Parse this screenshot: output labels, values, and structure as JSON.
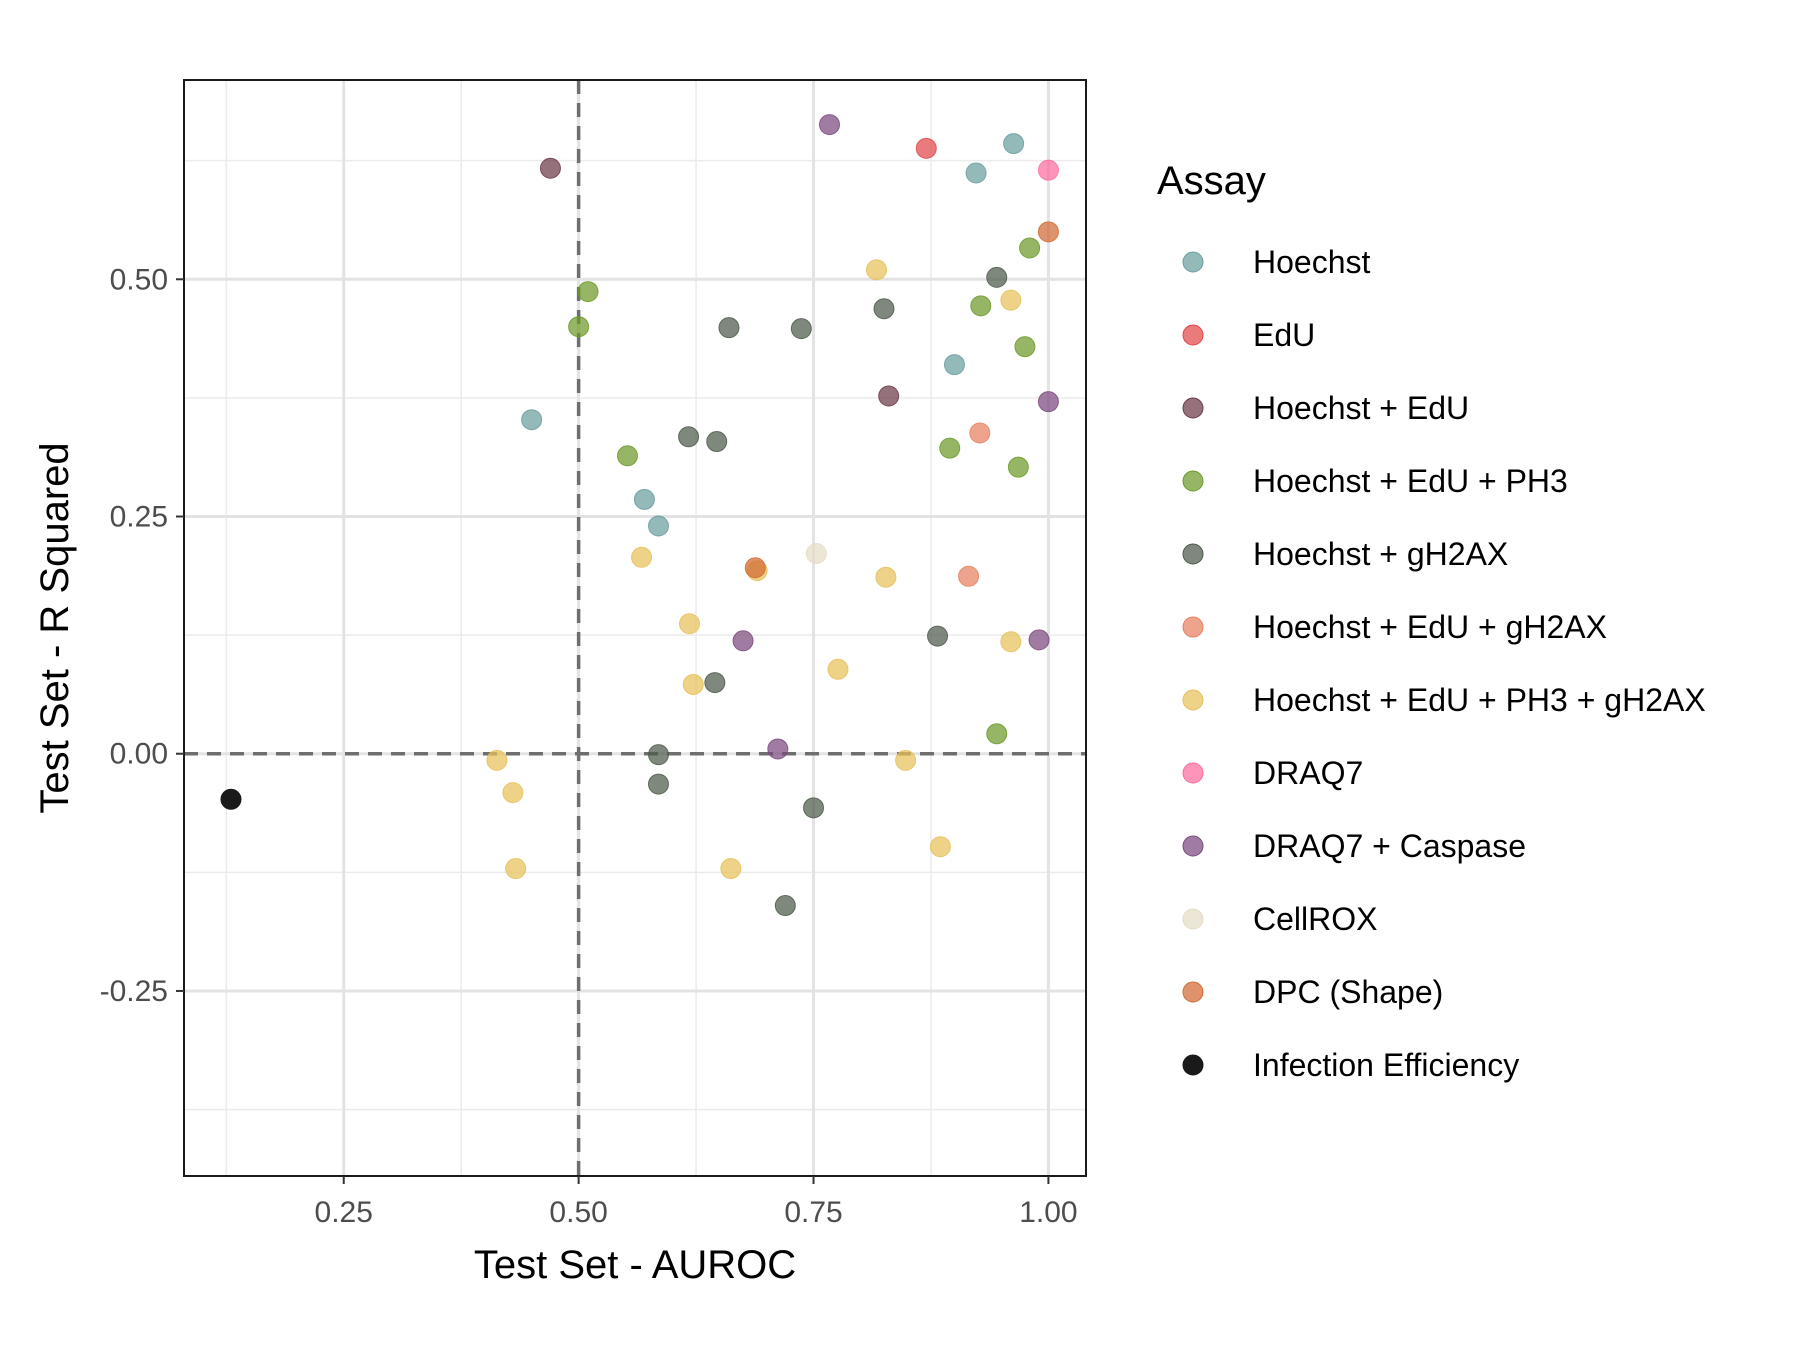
{
  "chart_data": {
    "type": "scatter",
    "xlabel": "Test Set - AUROC",
    "ylabel": "Test Set - R Squared",
    "xlim": [
      0.08,
      1.04
    ],
    "ylim": [
      -0.445,
      0.71
    ],
    "x_ticks": [
      0.25,
      0.5,
      0.75,
      1.0
    ],
    "x_tick_labels": [
      "0.25",
      "0.50",
      "0.75",
      "1.00"
    ],
    "y_ticks": [
      -0.25,
      0.0,
      0.25,
      0.5
    ],
    "y_tick_labels": [
      "-0.25",
      "0.00",
      "0.25",
      "0.50"
    ],
    "reference_lines": {
      "x": 0.5,
      "y": 0.0
    },
    "grid": true,
    "legend": {
      "title": "Assay",
      "position": "right"
    },
    "series": [
      {
        "name": "Hoechst",
        "color": "#6a9e9e",
        "points": [
          [
            0.45,
            0.352
          ],
          [
            0.57,
            0.268
          ],
          [
            0.585,
            0.24
          ],
          [
            0.9,
            0.41
          ],
          [
            0.923,
            0.612
          ],
          [
            0.963,
            0.643
          ]
        ]
      },
      {
        "name": "EdU",
        "color": "#e0484a",
        "points": [
          [
            0.87,
            0.638
          ]
        ]
      },
      {
        "name": "Hoechst + EdU",
        "color": "#6b3a48",
        "points": [
          [
            0.47,
            0.617
          ],
          [
            0.83,
            0.377
          ]
        ]
      },
      {
        "name": "Hoechst + EdU + PH3",
        "color": "#6e9a2a",
        "points": [
          [
            0.5,
            0.45
          ],
          [
            0.51,
            0.487
          ],
          [
            0.552,
            0.314
          ],
          [
            0.895,
            0.322
          ],
          [
            0.928,
            0.472
          ],
          [
            0.945,
            0.021
          ],
          [
            0.968,
            0.302
          ],
          [
            0.975,
            0.429
          ],
          [
            0.98,
            0.533
          ]
        ]
      },
      {
        "name": "Hoechst + gH2AX",
        "color": "#4d5a4b",
        "points": [
          [
            0.585,
            -0.001
          ],
          [
            0.585,
            -0.032
          ],
          [
            0.617,
            0.334
          ],
          [
            0.645,
            0.075
          ],
          [
            0.647,
            0.329
          ],
          [
            0.66,
            0.449
          ],
          [
            0.72,
            -0.16
          ],
          [
            0.737,
            0.448
          ],
          [
            0.75,
            -0.057
          ],
          [
            0.825,
            0.469
          ],
          [
            0.882,
            0.124
          ],
          [
            0.945,
            0.502
          ]
        ]
      },
      {
        "name": "Hoechst + EdU + gH2AX",
        "color": "#e88060",
        "points": [
          [
            0.915,
            0.187
          ],
          [
            0.927,
            0.338
          ]
        ]
      },
      {
        "name": "Hoechst + EdU + PH3 + gH2AX",
        "color": "#e6c15a",
        "points": [
          [
            0.413,
            -0.007
          ],
          [
            0.43,
            -0.041
          ],
          [
            0.433,
            -0.121
          ],
          [
            0.567,
            0.207
          ],
          [
            0.618,
            0.137
          ],
          [
            0.622,
            0.073
          ],
          [
            0.662,
            -0.121
          ],
          [
            0.69,
            0.193
          ],
          [
            0.776,
            0.089
          ],
          [
            0.817,
            0.51
          ],
          [
            0.827,
            0.186
          ],
          [
            0.848,
            -0.007
          ],
          [
            0.885,
            -0.098
          ],
          [
            0.96,
            0.118
          ],
          [
            0.96,
            0.478
          ]
        ]
      },
      {
        "name": "DRAQ7",
        "color": "#fb6c9e",
        "points": [
          [
            1.0,
            0.615
          ]
        ]
      },
      {
        "name": "DRAQ7 + Caspase",
        "color": "#7b4a7e",
        "points": [
          [
            0.675,
            0.119
          ],
          [
            0.712,
            0.005
          ],
          [
            0.767,
            0.663
          ],
          [
            0.99,
            0.12
          ],
          [
            1.0,
            0.371
          ]
        ]
      },
      {
        "name": "CellROX",
        "color": "#e5ddc6",
        "points": [
          [
            0.753,
            0.211
          ]
        ]
      },
      {
        "name": "DPC (Shape)",
        "color": "#d26a35",
        "points": [
          [
            0.688,
            0.196
          ],
          [
            1.0,
            0.55
          ]
        ]
      },
      {
        "name": "Infection Efficiency",
        "color": "#1a1a1a",
        "points": [
          [
            0.13,
            -0.048
          ]
        ]
      }
    ]
  }
}
